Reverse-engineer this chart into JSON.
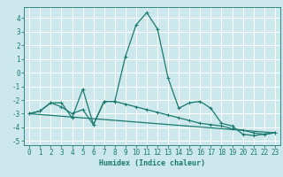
{
  "xlabel": "Humidex (Indice chaleur)",
  "bg_color": "#cce8ec",
  "grid_color": "#ffffff",
  "line_color": "#1a7a6e",
  "xlim": [
    -0.5,
    23.5
  ],
  "ylim": [
    -5.3,
    4.8
  ],
  "xticks": [
    0,
    1,
    2,
    3,
    4,
    5,
    6,
    7,
    8,
    9,
    10,
    11,
    12,
    13,
    14,
    15,
    16,
    17,
    18,
    19,
    20,
    21,
    22,
    23
  ],
  "yticks": [
    -5,
    -4,
    -3,
    -2,
    -1,
    0,
    1,
    2,
    3,
    4
  ],
  "series1_x": [
    0,
    1,
    2,
    3,
    4,
    5,
    6,
    7,
    8,
    9,
    10,
    11,
    12,
    13,
    14,
    15,
    16,
    17,
    18,
    19,
    20,
    21,
    22,
    23
  ],
  "series1_y": [
    -3.0,
    -2.8,
    -2.2,
    -2.2,
    -3.3,
    -1.2,
    -3.8,
    -2.1,
    -2.1,
    1.2,
    3.5,
    4.4,
    3.2,
    -0.4,
    -2.6,
    -2.2,
    -2.1,
    -2.6,
    -3.7,
    -3.9,
    -4.5,
    -4.6,
    -4.5,
    -4.4
  ],
  "series2_x": [
    0,
    1,
    2,
    3,
    4,
    5,
    6,
    7,
    8,
    9,
    10,
    11,
    12,
    13,
    14,
    15,
    16,
    17,
    18,
    19,
    20,
    21,
    22,
    23
  ],
  "series2_y": [
    -3.0,
    -2.8,
    -2.2,
    -2.5,
    -3.0,
    -2.7,
    -3.8,
    -2.1,
    -2.1,
    -2.3,
    -2.5,
    -2.7,
    -2.9,
    -3.1,
    -3.3,
    -3.5,
    -3.7,
    -3.8,
    -3.9,
    -4.1,
    -4.2,
    -4.4,
    -4.5,
    -4.4
  ],
  "series3_x": [
    0,
    23
  ],
  "series3_y": [
    -3.0,
    -4.4
  ],
  "xlabel_fontsize": 6.0,
  "tick_fontsize": 5.5,
  "linewidth": 0.9,
  "markersize": 2.5
}
